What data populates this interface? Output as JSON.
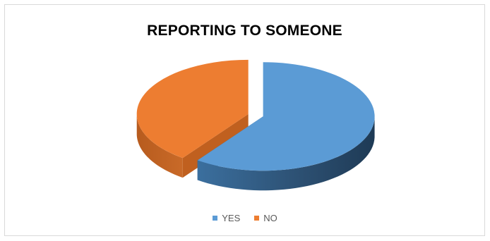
{
  "chart_data": {
    "type": "pie",
    "title": "REPORTING TO SOMEONE",
    "categories": [
      "YES",
      "NO"
    ],
    "values": [
      60,
      40
    ],
    "colors": [
      "#5b9bd5",
      "#ed7d31"
    ],
    "style": "3d-exploded",
    "legend_position": "bottom"
  }
}
